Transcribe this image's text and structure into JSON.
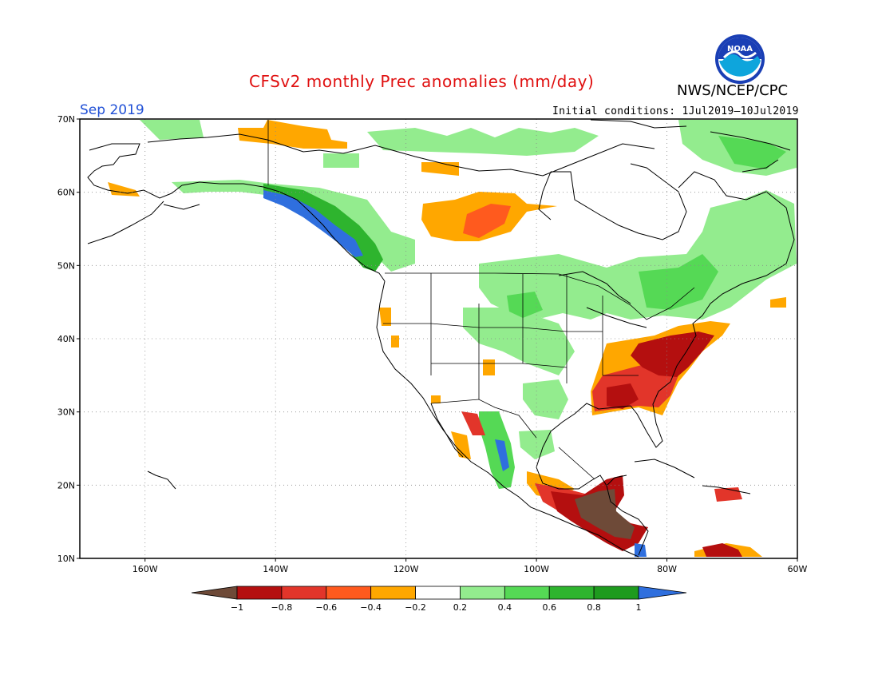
{
  "header": {
    "title": "CFSv2 monthly Prec anomalies (mm/day)",
    "month": "Sep 2019",
    "org": "NWS/NCEP/CPC",
    "initial_conditions": "Initial conditions: 1Jul2019–10Jul2019",
    "logo_text": "NOAA"
  },
  "axes": {
    "lat_labels": [
      "70N",
      "60N",
      "50N",
      "40N",
      "30N",
      "20N",
      "10N"
    ],
    "lat_values": [
      70,
      60,
      50,
      40,
      30,
      20,
      10
    ],
    "lon_labels": [
      "160W",
      "140W",
      "120W",
      "100W",
      "80W",
      "60W"
    ],
    "lon_values": [
      -160,
      -140,
      -120,
      -100,
      -80,
      -60
    ],
    "lon_range": [
      -170,
      -60
    ],
    "lat_range": [
      10,
      70
    ],
    "grid": "dotted"
  },
  "colorbar": {
    "labels": [
      "−1",
      "−0.8",
      "−0.6",
      "−0.4",
      "−0.2",
      "0.2",
      "0.4",
      "0.6",
      "0.8",
      "1"
    ],
    "colors": [
      "#6e4a38",
      "#b40f0f",
      "#e2352a",
      "#ff5a1e",
      "#ffa700",
      "#ffffff",
      "#93ec8e",
      "#55d955",
      "#2eb42e",
      "#1e9b1e",
      "#2f6fde"
    ]
  },
  "colors": {
    "dry_extreme": "#6e4a38",
    "dry_strong": "#b40f0f",
    "dry_mod": "#e2352a",
    "dry_med": "#ff5a1e",
    "dry_weak": "#ffa700",
    "wet_weak": "#93ec8e",
    "wet_med": "#55d955",
    "wet_mod": "#2eb42e",
    "wet_strong": "#1e9b1e",
    "wet_extreme": "#2f6fde"
  },
  "anomaly_regions": [
    {
      "name": "southeast-us",
      "level": "dry_mod"
    },
    {
      "name": "mid-atlantic",
      "level": "dry_strong"
    },
    {
      "name": "central-america",
      "level": "dry_extreme"
    },
    {
      "name": "central-canada",
      "level": "dry_weak"
    },
    {
      "name": "pacific-northwest-coast",
      "level": "wet_extreme"
    },
    {
      "name": "eastern-canada",
      "level": "wet_weak"
    },
    {
      "name": "west-mexico",
      "level": "wet_med"
    },
    {
      "name": "caribbean-south",
      "level": "dry_strong"
    }
  ]
}
